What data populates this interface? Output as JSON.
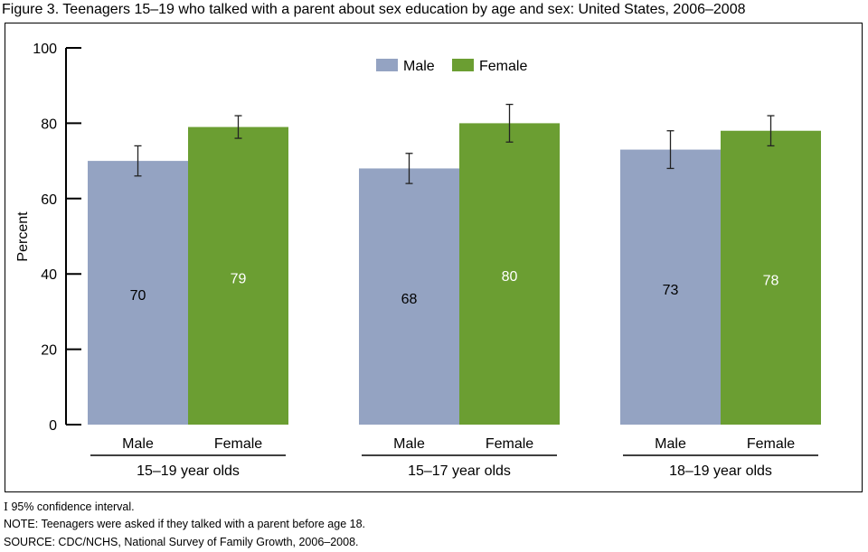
{
  "chart_data": {
    "type": "bar",
    "title": "Figure 3.  Teenagers 15–19 who talked with a parent about sex education by age and sex: United States, 2006–2008",
    "ylabel": "Percent",
    "ylim": [
      0,
      100
    ],
    "yticks": [
      0,
      20,
      40,
      60,
      80,
      100
    ],
    "grid": false,
    "legend_placement": "top-center",
    "categories": [
      "15–19 year olds",
      "15–17 year olds",
      "18–19 year olds"
    ],
    "sub_labels": [
      "Male",
      "Female"
    ],
    "series": [
      {
        "name": "Male",
        "color": "#94a3c2",
        "label_color": "#000000",
        "values": [
          70,
          68,
          73
        ],
        "ci_low": [
          66,
          64,
          68
        ],
        "ci_high": [
          74,
          72,
          78
        ]
      },
      {
        "name": "Female",
        "color": "#6b9e32",
        "label_color": "#ffffff",
        "values": [
          79,
          80,
          78
        ],
        "ci_low": [
          76,
          75,
          74
        ],
        "ci_high": [
          82,
          85,
          82
        ]
      }
    ]
  },
  "footnotes": {
    "ci": "95% confidence interval.",
    "note": "NOTE: Teenagers were asked if they talked with a parent before age 18.",
    "source": "SOURCE: CDC/NCHS, National Survey of Family Growth, 2006–2008."
  }
}
